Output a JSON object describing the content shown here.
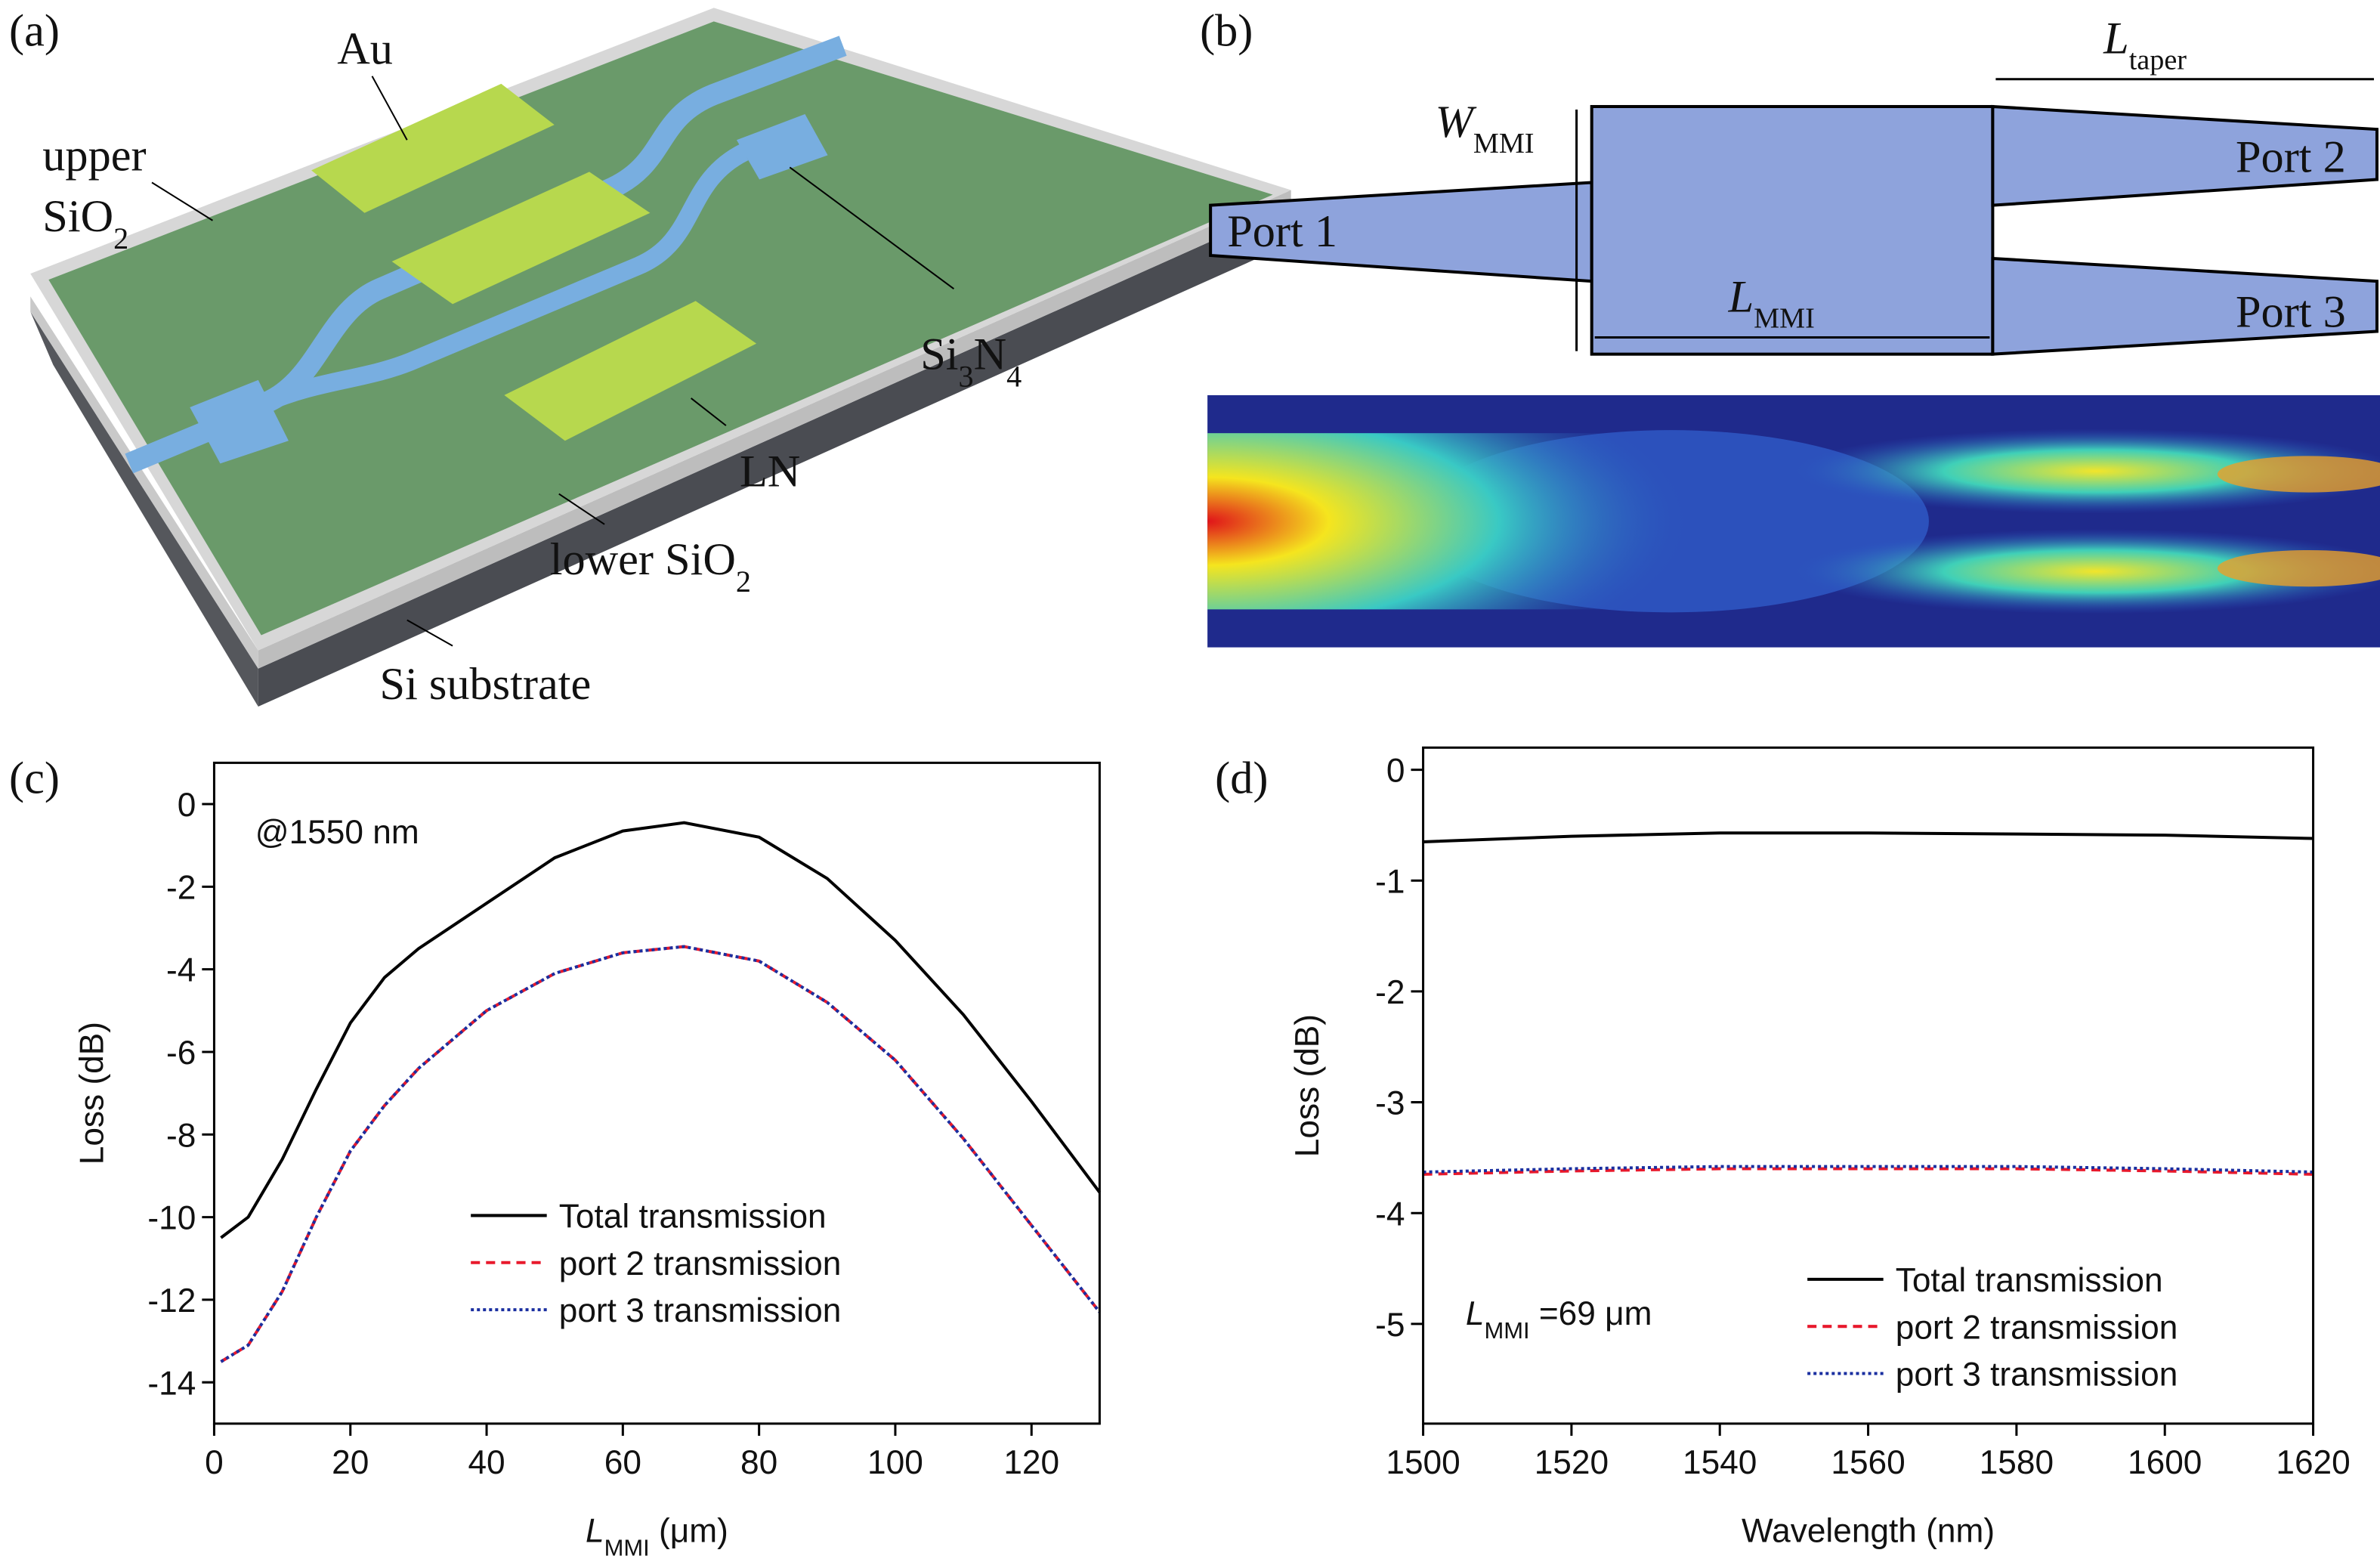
{
  "panel_labels": [
    "(a)",
    "(b)",
    "(c)",
    "(d)"
  ],
  "diagram_a": {
    "au": "Au",
    "upper": "upper",
    "upper_sio2": [
      "SiO",
      "2"
    ],
    "si3n4": [
      "Si",
      "3",
      "N",
      "4"
    ],
    "ln": "LN",
    "lower_sio2": [
      "lower SiO",
      "2"
    ],
    "si_substrate": "Si substrate"
  },
  "diagram_b": {
    "w_mmi": [
      "W",
      "MMI"
    ],
    "l_taper": [
      "L",
      "taper"
    ],
    "port1": "Port 1",
    "port2": "Port 2",
    "port3": "Port 3",
    "l_mmi": [
      "L",
      "MMI"
    ]
  },
  "chart_data": [
    {
      "type": "line",
      "xlabel": [
        "L",
        "MMI",
        " (μm)"
      ],
      "ylabel": "Loss (dB)",
      "annotation": "@1550 nm",
      "legend": "lower center",
      "x": [
        1,
        5,
        10,
        15,
        20,
        25,
        30,
        40,
        50,
        60,
        69,
        80,
        90,
        100,
        110,
        120,
        130
      ],
      "series": [
        {
          "name": "Total transmission",
          "color": "#000000",
          "style": "solid",
          "values": [
            -10.5,
            -10.0,
            -8.6,
            -6.9,
            -5.3,
            -4.2,
            -3.5,
            -2.4,
            -1.3,
            -0.65,
            -0.45,
            -0.8,
            -1.8,
            -3.3,
            -5.1,
            -7.2,
            -9.4
          ]
        },
        {
          "name": "port 2 transmission",
          "color": "#e8192c",
          "style": "dashed",
          "values": [
            -13.5,
            -13.1,
            -11.8,
            -10.0,
            -8.4,
            -7.3,
            -6.4,
            -5.0,
            -4.1,
            -3.6,
            -3.45,
            -3.8,
            -4.8,
            -6.2,
            -8.1,
            -10.2,
            -12.3
          ]
        },
        {
          "name": "port 3 transmission",
          "color": "#1a2fa0",
          "style": "dotted",
          "values": [
            -13.5,
            -13.1,
            -11.8,
            -10.0,
            -8.4,
            -7.3,
            -6.4,
            -5.0,
            -4.1,
            -3.6,
            -3.45,
            -3.8,
            -4.8,
            -6.2,
            -8.1,
            -10.2,
            -12.3
          ]
        }
      ],
      "xlim": [
        0,
        130
      ],
      "xticks": [
        0,
        20,
        40,
        60,
        80,
        100,
        120
      ],
      "ylim": [
        -15,
        1
      ],
      "yticks": [
        0,
        -2,
        -4,
        -6,
        -8,
        -10,
        -12,
        -14
      ]
    },
    {
      "type": "line",
      "xlabel": "Wavelength (nm)",
      "ylabel": "Loss (dB)",
      "annotation": [
        "L",
        "MMI",
        " =69 μm"
      ],
      "legend": "lower right",
      "x": [
        1500,
        1520,
        1540,
        1560,
        1580,
        1600,
        1620
      ],
      "series": [
        {
          "name": "Total transmission",
          "color": "#000000",
          "style": "solid",
          "values": [
            -0.65,
            -0.6,
            -0.57,
            -0.57,
            -0.58,
            -0.59,
            -0.62
          ]
        },
        {
          "name": "port 2 transmission",
          "color": "#e8192c",
          "style": "dashed",
          "values": [
            -3.65,
            -3.62,
            -3.6,
            -3.6,
            -3.6,
            -3.62,
            -3.65
          ]
        },
        {
          "name": "port 3 transmission",
          "color": "#1a2fa0",
          "style": "dotted",
          "values": [
            -3.63,
            -3.6,
            -3.58,
            -3.58,
            -3.58,
            -3.6,
            -3.63
          ]
        }
      ],
      "xlim": [
        1500,
        1620
      ],
      "xticks": [
        1500,
        1520,
        1540,
        1560,
        1580,
        1600,
        1620
      ],
      "ylim": [
        -5.9,
        0.2
      ],
      "yticks": [
        0,
        -1,
        -2,
        -3,
        -4,
        -5
      ]
    }
  ]
}
